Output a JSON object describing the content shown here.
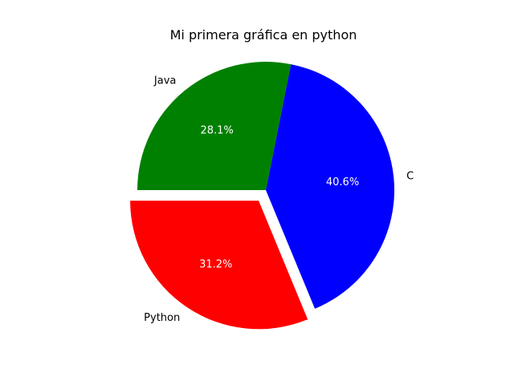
{
  "chart_data": {
    "type": "pie",
    "title": "Mi primera gráfica en python",
    "slices": [
      {
        "label": "Python",
        "value": 31.2,
        "pct_label": "31.2%",
        "color": "#ff0000",
        "explode": 0.1
      },
      {
        "label": "C",
        "value": 40.6,
        "pct_label": "40.6%",
        "color": "#0000ff",
        "explode": 0
      },
      {
        "label": "Java",
        "value": 28.1,
        "pct_label": "28.1%",
        "color": "#008000",
        "explode": 0
      }
    ],
    "start_angle_deg": 180,
    "direction": "counterclockwise",
    "legend": "none"
  }
}
